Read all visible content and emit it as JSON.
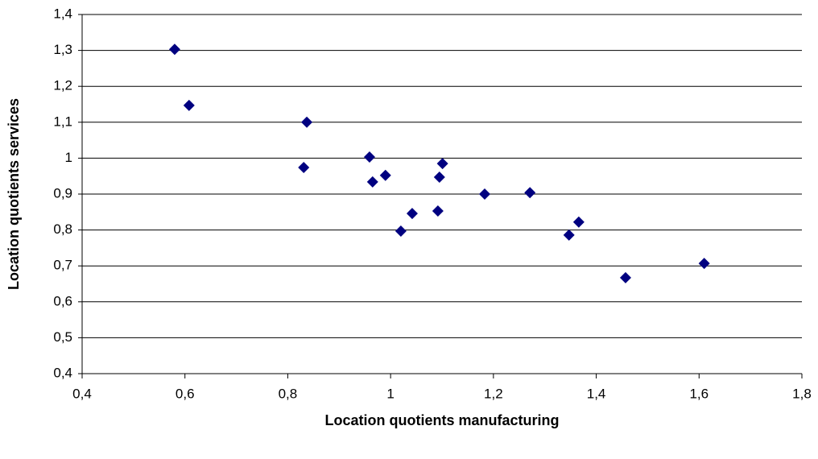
{
  "chart_data": {
    "type": "scatter",
    "x_label": "Location quotients manufacturing",
    "y_label": "Location quotients services",
    "series": [
      {
        "color": "#000080",
        "x": [
          0.58,
          0.608,
          0.837,
          0.831,
          0.959,
          0.965,
          0.99,
          1.101,
          1.095,
          1.042,
          1.02,
          1.092,
          1.183,
          1.271,
          1.347,
          1.366,
          1.457,
          1.61
        ],
        "values": [
          1.303,
          1.147,
          1.1,
          0.974,
          1.003,
          0.934,
          0.952,
          0.985,
          0.947,
          0.846,
          0.797,
          0.853,
          0.9,
          0.904,
          0.786,
          0.822,
          0.667,
          0.707
        ]
      }
    ],
    "xlim": [
      0.4,
      1.8
    ],
    "xticks": [
      {
        "value": 0.4,
        "label": "0,4"
      },
      {
        "value": 0.6,
        "label": "0,6"
      },
      {
        "value": 0.8,
        "label": "0,8"
      },
      1,
      {
        "value": 1.2,
        "label": "1,2"
      },
      {
        "value": 1.4,
        "label": "1,4"
      },
      {
        "value": 1.6,
        "label": "1,6"
      },
      {
        "value": 1.8,
        "label": "1,8"
      }
    ],
    "ylim": [
      0.4,
      1.4
    ],
    "yticks": [
      {
        "value": 0.4,
        "label": "0,4"
      },
      {
        "value": 0.5,
        "label": "0,5"
      },
      {
        "value": 0.6,
        "label": "0,6"
      },
      {
        "value": 0.7,
        "label": "0,7"
      },
      {
        "value": 0.8,
        "label": "0,8"
      },
      {
        "value": 0.9,
        "label": "0,9"
      },
      1,
      {
        "value": 1.1,
        "label": "1,1"
      },
      {
        "value": 1.2,
        "label": "1,2"
      },
      {
        "value": 1.3,
        "label": "1,3"
      },
      {
        "value": 1.4,
        "label": "1,4"
      }
    ],
    "grid": true
  }
}
